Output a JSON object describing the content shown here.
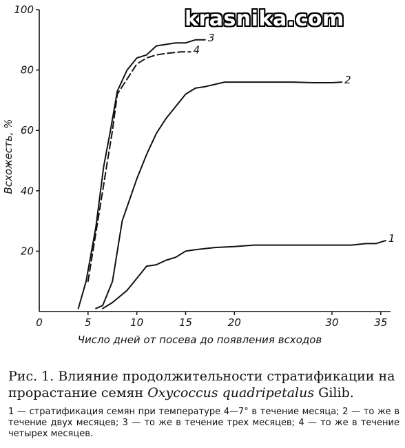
{
  "watermark": "krasnika.com",
  "chart_data": {
    "type": "line",
    "xlabel": "Число дней от посева до появления всходов",
    "ylabel": "Всхожесть, %",
    "xlim": [
      0,
      36
    ],
    "ylim": [
      0,
      100
    ],
    "x_ticks": [
      0,
      5,
      10,
      15,
      20,
      30,
      35
    ],
    "y_ticks": [
      20,
      40,
      60,
      80,
      100
    ],
    "series": [
      {
        "name": "1",
        "style": "solid",
        "points": [
          [
            6.5,
            1
          ],
          [
            7.5,
            3
          ],
          [
            9,
            7
          ],
          [
            10,
            11
          ],
          [
            11,
            15
          ],
          [
            12,
            15.5
          ],
          [
            13,
            17
          ],
          [
            14,
            18
          ],
          [
            15,
            20
          ],
          [
            16,
            20.5
          ],
          [
            18,
            21.2
          ],
          [
            20,
            21.5
          ],
          [
            22,
            22
          ],
          [
            26,
            22
          ],
          [
            30,
            22
          ],
          [
            32,
            22
          ],
          [
            33.5,
            22.5
          ],
          [
            34.5,
            22.5
          ],
          [
            35.5,
            23.5
          ]
        ]
      },
      {
        "name": "2",
        "style": "solid",
        "points": [
          [
            5.8,
            1
          ],
          [
            6.5,
            2
          ],
          [
            7.5,
            10
          ],
          [
            8.5,
            30
          ],
          [
            10,
            44
          ],
          [
            11,
            52
          ],
          [
            12,
            59
          ],
          [
            13,
            64
          ],
          [
            14,
            68
          ],
          [
            15,
            72
          ],
          [
            16,
            74
          ],
          [
            17,
            74.5
          ],
          [
            19,
            76
          ],
          [
            22,
            76
          ],
          [
            26,
            76
          ],
          [
            28,
            75.8
          ],
          [
            30,
            75.8
          ],
          [
            31,
            76
          ]
        ]
      },
      {
        "name": "3",
        "style": "solid",
        "points": [
          [
            4,
            1
          ],
          [
            4.8,
            10
          ],
          [
            5.8,
            28
          ],
          [
            6.6,
            48
          ],
          [
            7.3,
            60
          ],
          [
            8,
            73
          ],
          [
            9,
            80
          ],
          [
            10,
            84
          ],
          [
            11,
            85
          ],
          [
            12,
            88
          ],
          [
            13,
            88.5
          ],
          [
            14,
            89
          ],
          [
            15,
            89
          ],
          [
            16,
            90
          ],
          [
            17,
            90
          ]
        ]
      },
      {
        "name": "4",
        "style": "dashed",
        "points": [
          [
            5,
            10
          ],
          [
            5.5,
            20
          ],
          [
            6,
            30
          ],
          [
            6.5,
            40
          ],
          [
            6.7,
            44
          ],
          [
            7.5,
            60
          ],
          [
            8,
            72
          ],
          [
            9,
            77
          ],
          [
            10,
            82
          ],
          [
            11,
            84
          ],
          [
            12,
            85
          ],
          [
            13,
            85.5
          ],
          [
            14.5,
            86
          ],
          [
            15.5,
            86
          ]
        ]
      }
    ]
  },
  "caption": {
    "fig_title": "Рис. 1. Влияние продолжительности стратификации на прорастание семян",
    "species": "Oxycoccus quadripetalus",
    "author": "Gilib.",
    "legend_text": "1 — стратификация семян при температуре 4—7° в течение месяца; 2 — то же в течение двух месяцев; 3 — то же в течение трех месяцев; 4 — то же в течение четырех месяцев."
  }
}
